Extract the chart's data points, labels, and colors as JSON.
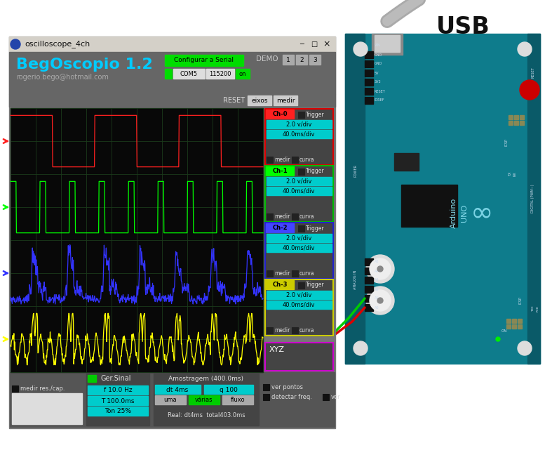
{
  "usb_label": "USB",
  "window_title": "oscilloscope_4ch",
  "app_name": "BegOscopio 1.2",
  "app_email": "rogerio.bego@hotmail.com",
  "ch0_color": "#ff2020",
  "ch1_color": "#00ff00",
  "ch2_color": "#3333ff",
  "ch3_color": "#ffff00",
  "ch0_border": "#dd0000",
  "ch1_border": "#00bb00",
  "ch2_border": "#2222cc",
  "ch3_border": "#cccc00",
  "xyz_border": "#cc00cc",
  "cyan_btn": "#00cccc",
  "green_btn": "#00cc00",
  "image_bg": "#ffffff",
  "win_bg": "#666666",
  "osc_bg": "#080808",
  "grid_color": "#1a3a1a",
  "panel_bg": "#555555",
  "titlebar_bg": "#d4d0c8",
  "arduino_teal": "#0e7c8c",
  "arduino_dark": "#0a5a68"
}
